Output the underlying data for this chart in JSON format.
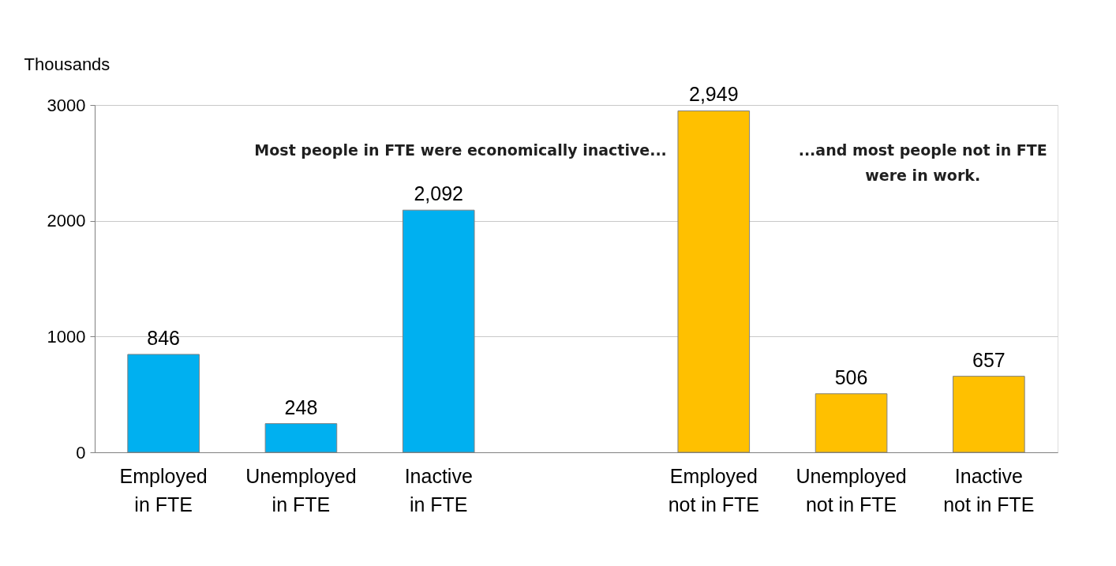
{
  "chart_data": {
    "type": "bar",
    "ylabel": "Thousands",
    "categories": [
      "Employed in FTE",
      "Unemployed in FTE",
      "Inactive in FTE",
      null,
      "Employed not in FTE",
      "Unemployed not in FTE",
      "Inactive not in FTE"
    ],
    "values": [
      846,
      248,
      2092,
      null,
      2949,
      506,
      657
    ],
    "colors": [
      "#00b0f0",
      "#00b0f0",
      "#00b0f0",
      "#ffffff",
      "#ffc000",
      "#ffc000",
      "#ffc000"
    ],
    "ylim": [
      0,
      3000
    ],
    "yticks": [
      0,
      1000,
      2000,
      3000
    ],
    "grid": "y",
    "value_labels": [
      "846",
      "248",
      "2,092",
      null,
      "2,949",
      "506",
      "657"
    ],
    "annotations": [
      "Most people in FTE were economically inactive...",
      "...and most people not in FTE were in work."
    ]
  }
}
